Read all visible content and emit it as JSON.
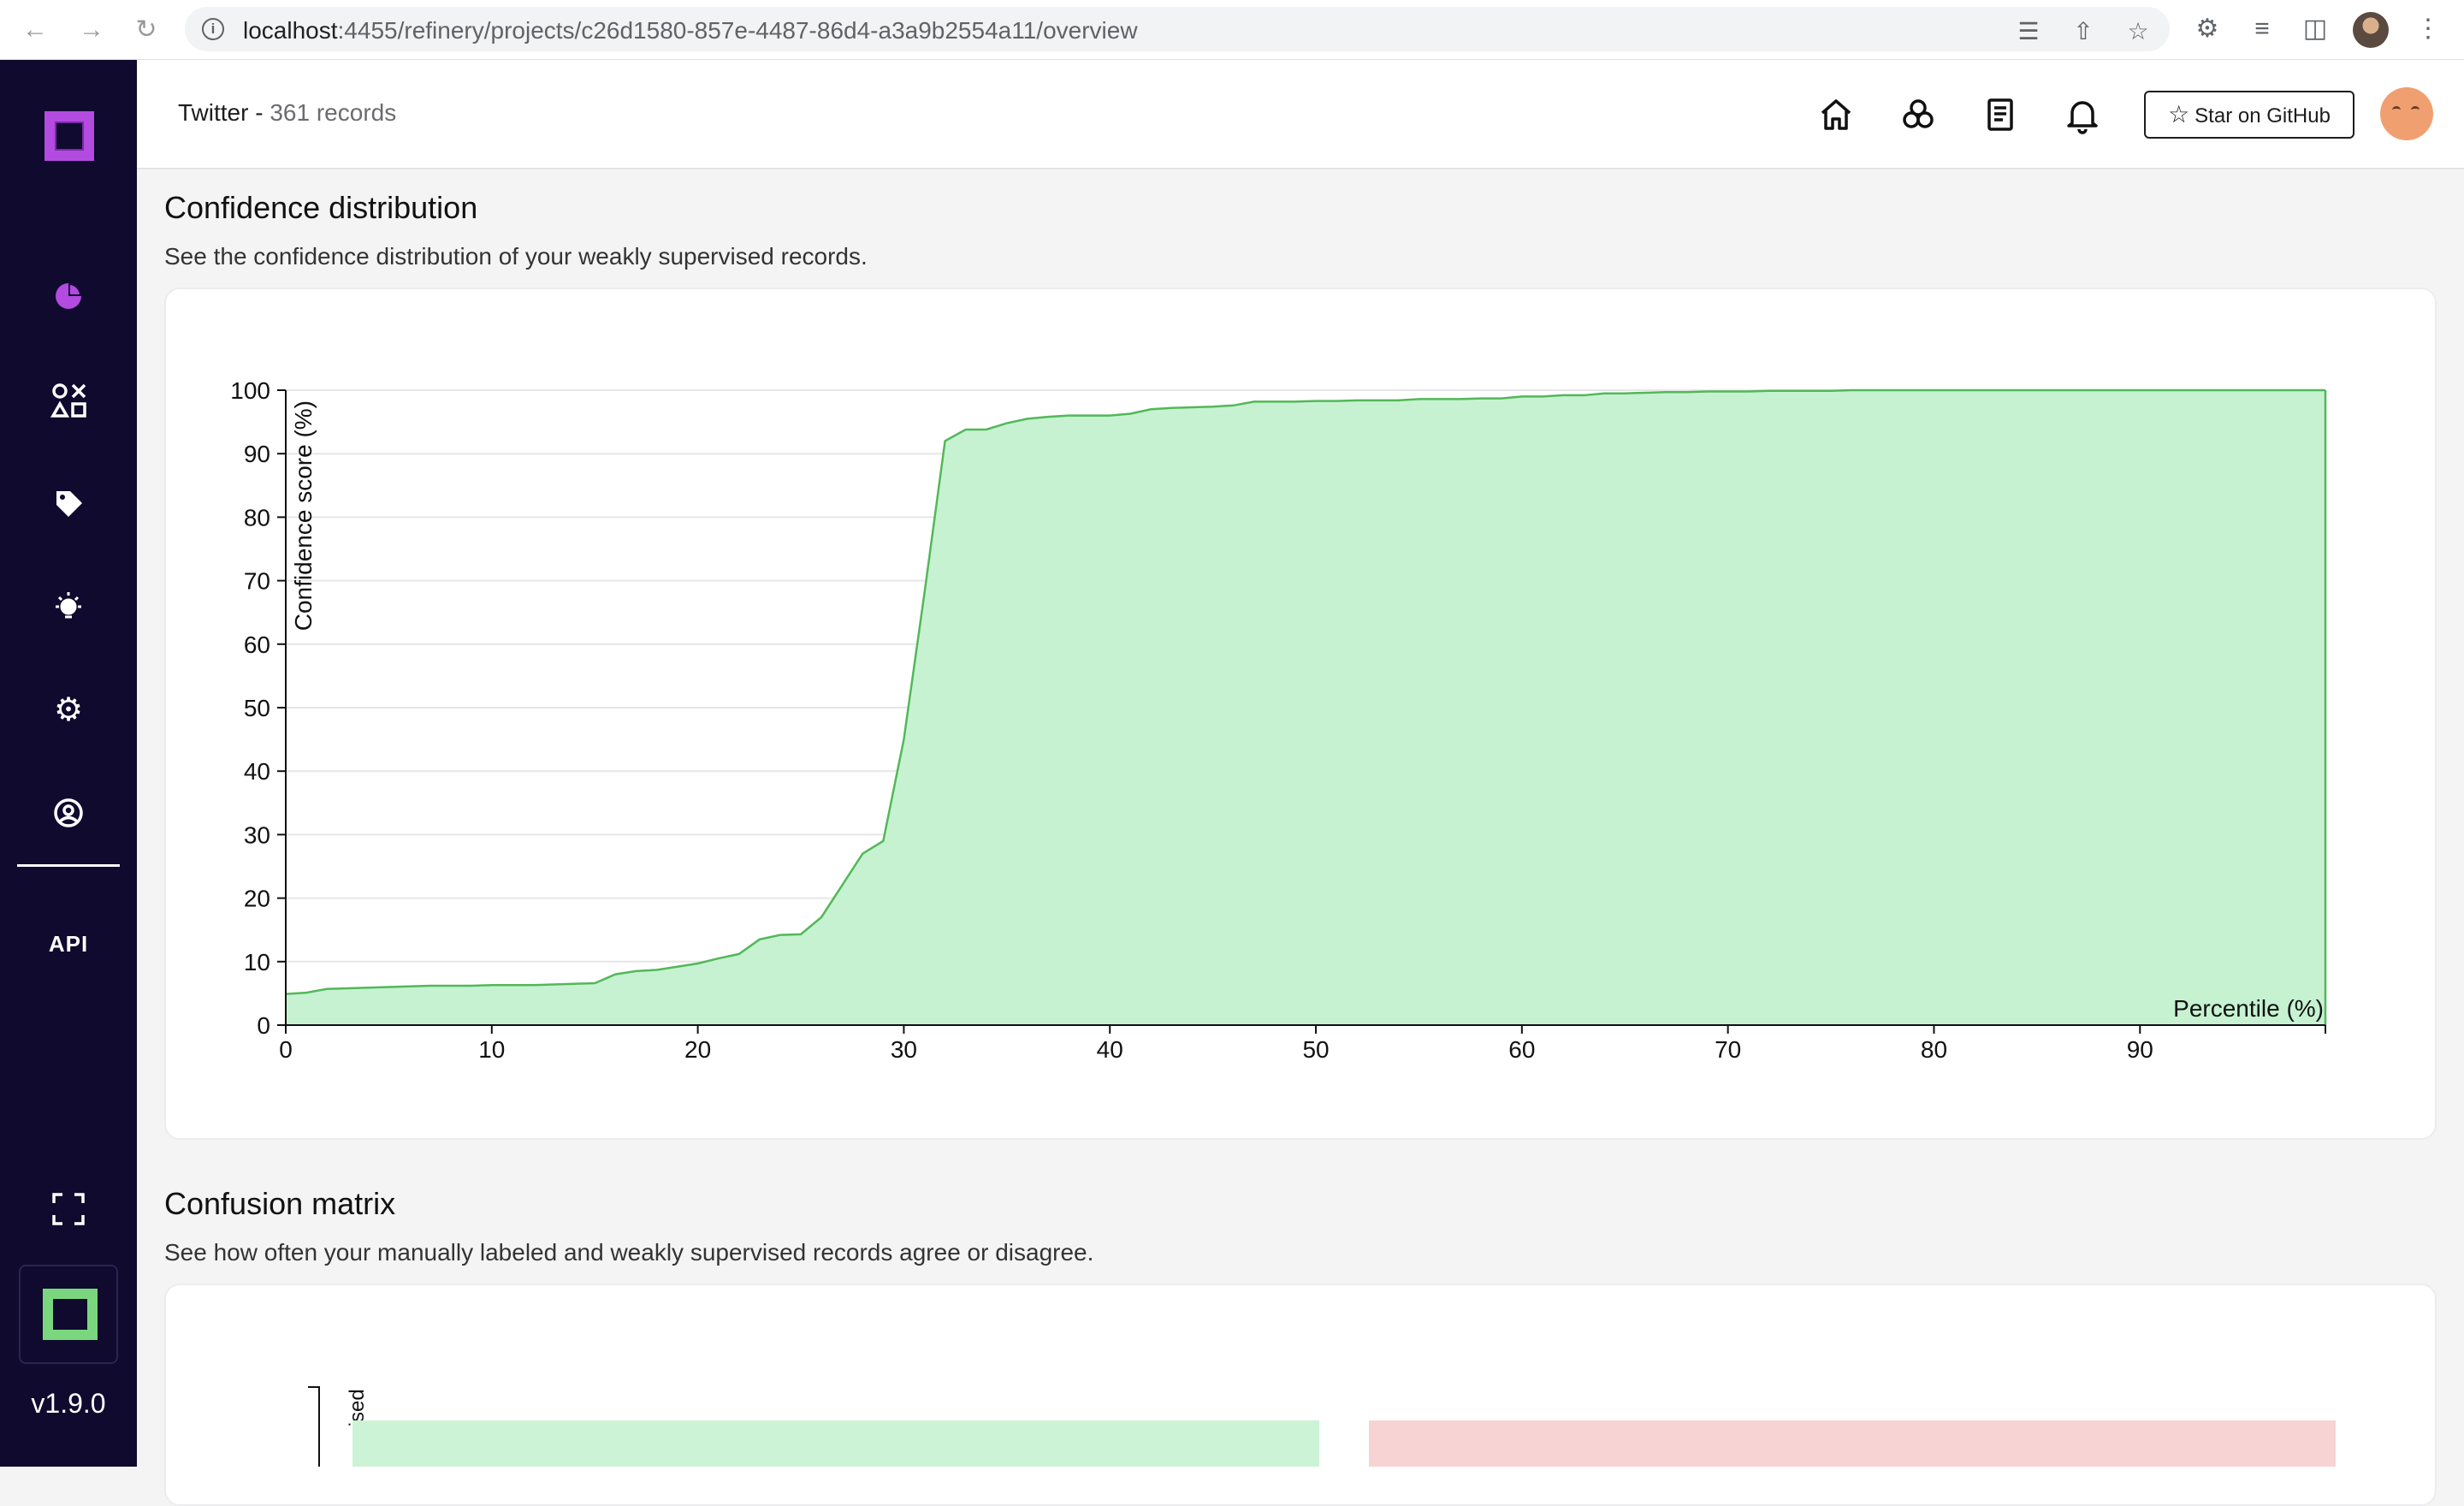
{
  "browser": {
    "url_host": "localhost",
    "url_rest": ":4455/refinery/projects/c26d1580-857e-4487-86d4-a3a9b2554a11/overview",
    "icons": [
      "back-icon",
      "forward-icon",
      "reload-icon",
      "info-icon",
      "translate-icon",
      "share-icon",
      "bookmark-star-icon",
      "extensions-icon",
      "reading-list-icon",
      "side-panel-icon",
      "profile-avatar",
      "menu-icon"
    ]
  },
  "sidebar": {
    "items": [
      {
        "name": "overview",
        "icon": "pie-chart-icon"
      },
      {
        "name": "data-browser",
        "icon": "shapes-icon"
      },
      {
        "name": "labeling",
        "icon": "tag-icon"
      },
      {
        "name": "heuristics",
        "icon": "lightbulb-icon"
      },
      {
        "name": "settings",
        "icon": "gear-icon"
      },
      {
        "name": "users",
        "icon": "user-circle-icon"
      }
    ],
    "api_label": "API",
    "version": "v1.9.0",
    "accent": "#b34be0",
    "bottom_logo_color": "#7ad77e"
  },
  "header": {
    "project_name": "Twitter",
    "project_separator": " - ",
    "project_count": "361 records",
    "github_label": "Star on GitHub",
    "icons": [
      "home-icon",
      "projects-icon",
      "docs-icon",
      "notifications-icon"
    ]
  },
  "confidence": {
    "title": "Confidence distribution",
    "description": "See the confidence distribution of your weakly supervised records."
  },
  "confusion": {
    "title": "Confusion matrix",
    "description": "See how often your manually labeled and weakly supervised records agree or disagree.",
    "y_label_partial": "pervised",
    "colors": {
      "agree": "#cdf3d6",
      "disagree": "#f7d3d3"
    }
  },
  "chart_data": {
    "type": "area",
    "title": "",
    "xlabel": "Percentile (%)",
    "ylabel": "Confidence score (%)",
    "xlim": [
      0,
      99
    ],
    "ylim": [
      0,
      100
    ],
    "x_ticks": [
      0,
      10,
      20,
      30,
      40,
      50,
      60,
      70,
      80,
      90
    ],
    "y_ticks": [
      0,
      10,
      20,
      30,
      40,
      50,
      60,
      70,
      80,
      90,
      100
    ],
    "color_fill": "#c6f2d2",
    "color_line": "#52b858",
    "grid": true,
    "x": [
      0,
      1,
      2,
      3,
      4,
      5,
      6,
      7,
      8,
      9,
      10,
      11,
      12,
      13,
      14,
      15,
      16,
      17,
      18,
      19,
      20,
      21,
      22,
      23,
      24,
      25,
      26,
      27,
      28,
      29,
      30,
      31,
      32,
      33,
      34,
      35,
      36,
      37,
      38,
      39,
      40,
      41,
      42,
      43,
      44,
      45,
      46,
      47,
      48,
      49,
      50,
      51,
      52,
      53,
      54,
      55,
      56,
      57,
      58,
      59,
      60,
      61,
      62,
      63,
      64,
      65,
      66,
      67,
      68,
      69,
      70,
      71,
      72,
      73,
      74,
      75,
      76,
      77,
      78,
      79,
      80,
      81,
      82,
      83,
      84,
      85,
      86,
      87,
      88,
      89,
      90,
      91,
      92,
      93,
      94,
      95,
      96,
      97,
      98,
      99
    ],
    "y": [
      4.9,
      5.1,
      5.7,
      5.8,
      5.9,
      6.0,
      6.1,
      6.2,
      6.2,
      6.2,
      6.3,
      6.3,
      6.3,
      6.4,
      6.5,
      6.6,
      8.0,
      8.5,
      8.7,
      9.2,
      9.7,
      10.5,
      11.2,
      13.5,
      14.2,
      14.3,
      17.0,
      22.0,
      27.0,
      29.0,
      45.0,
      68.0,
      92.0,
      93.8,
      93.8,
      94.8,
      95.5,
      95.8,
      96.0,
      96.0,
      96.0,
      96.3,
      97.0,
      97.2,
      97.3,
      97.4,
      97.6,
      98.2,
      98.2,
      98.2,
      98.3,
      98.3,
      98.4,
      98.4,
      98.4,
      98.6,
      98.6,
      98.6,
      98.7,
      98.7,
      99.0,
      99.0,
      99.2,
      99.2,
      99.5,
      99.5,
      99.6,
      99.7,
      99.7,
      99.8,
      99.8,
      99.8,
      99.9,
      99.9,
      99.9,
      99.9,
      100,
      100,
      100,
      100,
      100,
      100,
      100,
      100,
      100,
      100,
      100,
      100,
      100,
      100,
      100,
      100,
      100,
      100,
      100,
      100,
      100,
      100,
      100,
      100
    ]
  }
}
